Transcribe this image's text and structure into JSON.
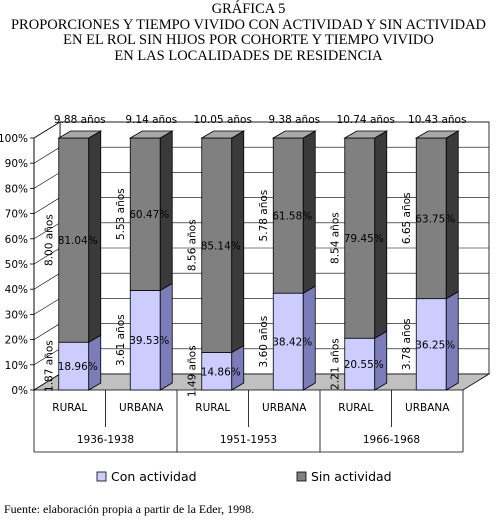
{
  "title_lines": [
    "GRÁFICA 5",
    "PROPORCIONES Y TIEMPO VIVIDO CON ACTIVIDAD Y SIN ACTIVIDAD",
    "EN EL ROL SIN HIJOS POR COHORTE Y TIEMPO VIVIDO",
    "EN LAS LOCALIDADES DE RESIDENCIA"
  ],
  "source": "Fuente: elaboración propia a partir de la Eder, 1998.",
  "colors": {
    "con_actividad": "#ccccff",
    "con_actividad_side": "#7c7cb8",
    "con_actividad_top": "#e6e6ff",
    "sin_actividad": "#808080",
    "sin_actividad_side": "#3a3a3a",
    "sin_actividad_top": "#a8a8a8",
    "floor": "#c0c0c0"
  },
  "chart_data": {
    "type": "bar",
    "stacked": true,
    "percent": true,
    "three_d": true,
    "categories": [
      "RURAL",
      "URBANA",
      "RURAL",
      "URBANA",
      "RURAL",
      "URBANA"
    ],
    "groups": [
      {
        "label": "1936-1938",
        "categories": [
          "RURAL",
          "URBANA"
        ]
      },
      {
        "label": "1951-1953",
        "categories": [
          "RURAL",
          "URBANA"
        ]
      },
      {
        "label": "1966-1968",
        "categories": [
          "RURAL",
          "URBANA"
        ]
      }
    ],
    "totals": [
      "9.88 años",
      "9.14 años",
      "10.05 años",
      "9.38 años",
      "10.74 años",
      "10.43 años"
    ],
    "series": [
      {
        "name": "Con actividad",
        "values": [
          18.96,
          39.53,
          14.86,
          38.42,
          20.55,
          36.25
        ],
        "labels": [
          "18.96%",
          "39.53%",
          "14.86%",
          "38.42%",
          "20.55%",
          "36.25%"
        ],
        "years": [
          "1.87 años",
          "3.61 años",
          "1.49 años",
          "3.60 años",
          "2.21 años",
          "3.78 años"
        ]
      },
      {
        "name": "Sin actividad",
        "values": [
          81.04,
          60.47,
          85.14,
          61.58,
          79.45,
          63.75
        ],
        "labels": [
          "81.04%",
          "60.47%",
          "85.14%",
          "61.58%",
          "79.45%",
          "63.75%"
        ],
        "years": [
          "8.00 años",
          "5.53 años",
          "8.56 años",
          "5.78 años",
          "8.54 años",
          "6.65 años"
        ]
      }
    ],
    "yticks": [
      "0%",
      "10%",
      "20%",
      "30%",
      "40%",
      "50%",
      "60%",
      "70%",
      "80%",
      "90%",
      "100%"
    ],
    "ylim": [
      0,
      100
    ],
    "legend_position": "bottom"
  }
}
